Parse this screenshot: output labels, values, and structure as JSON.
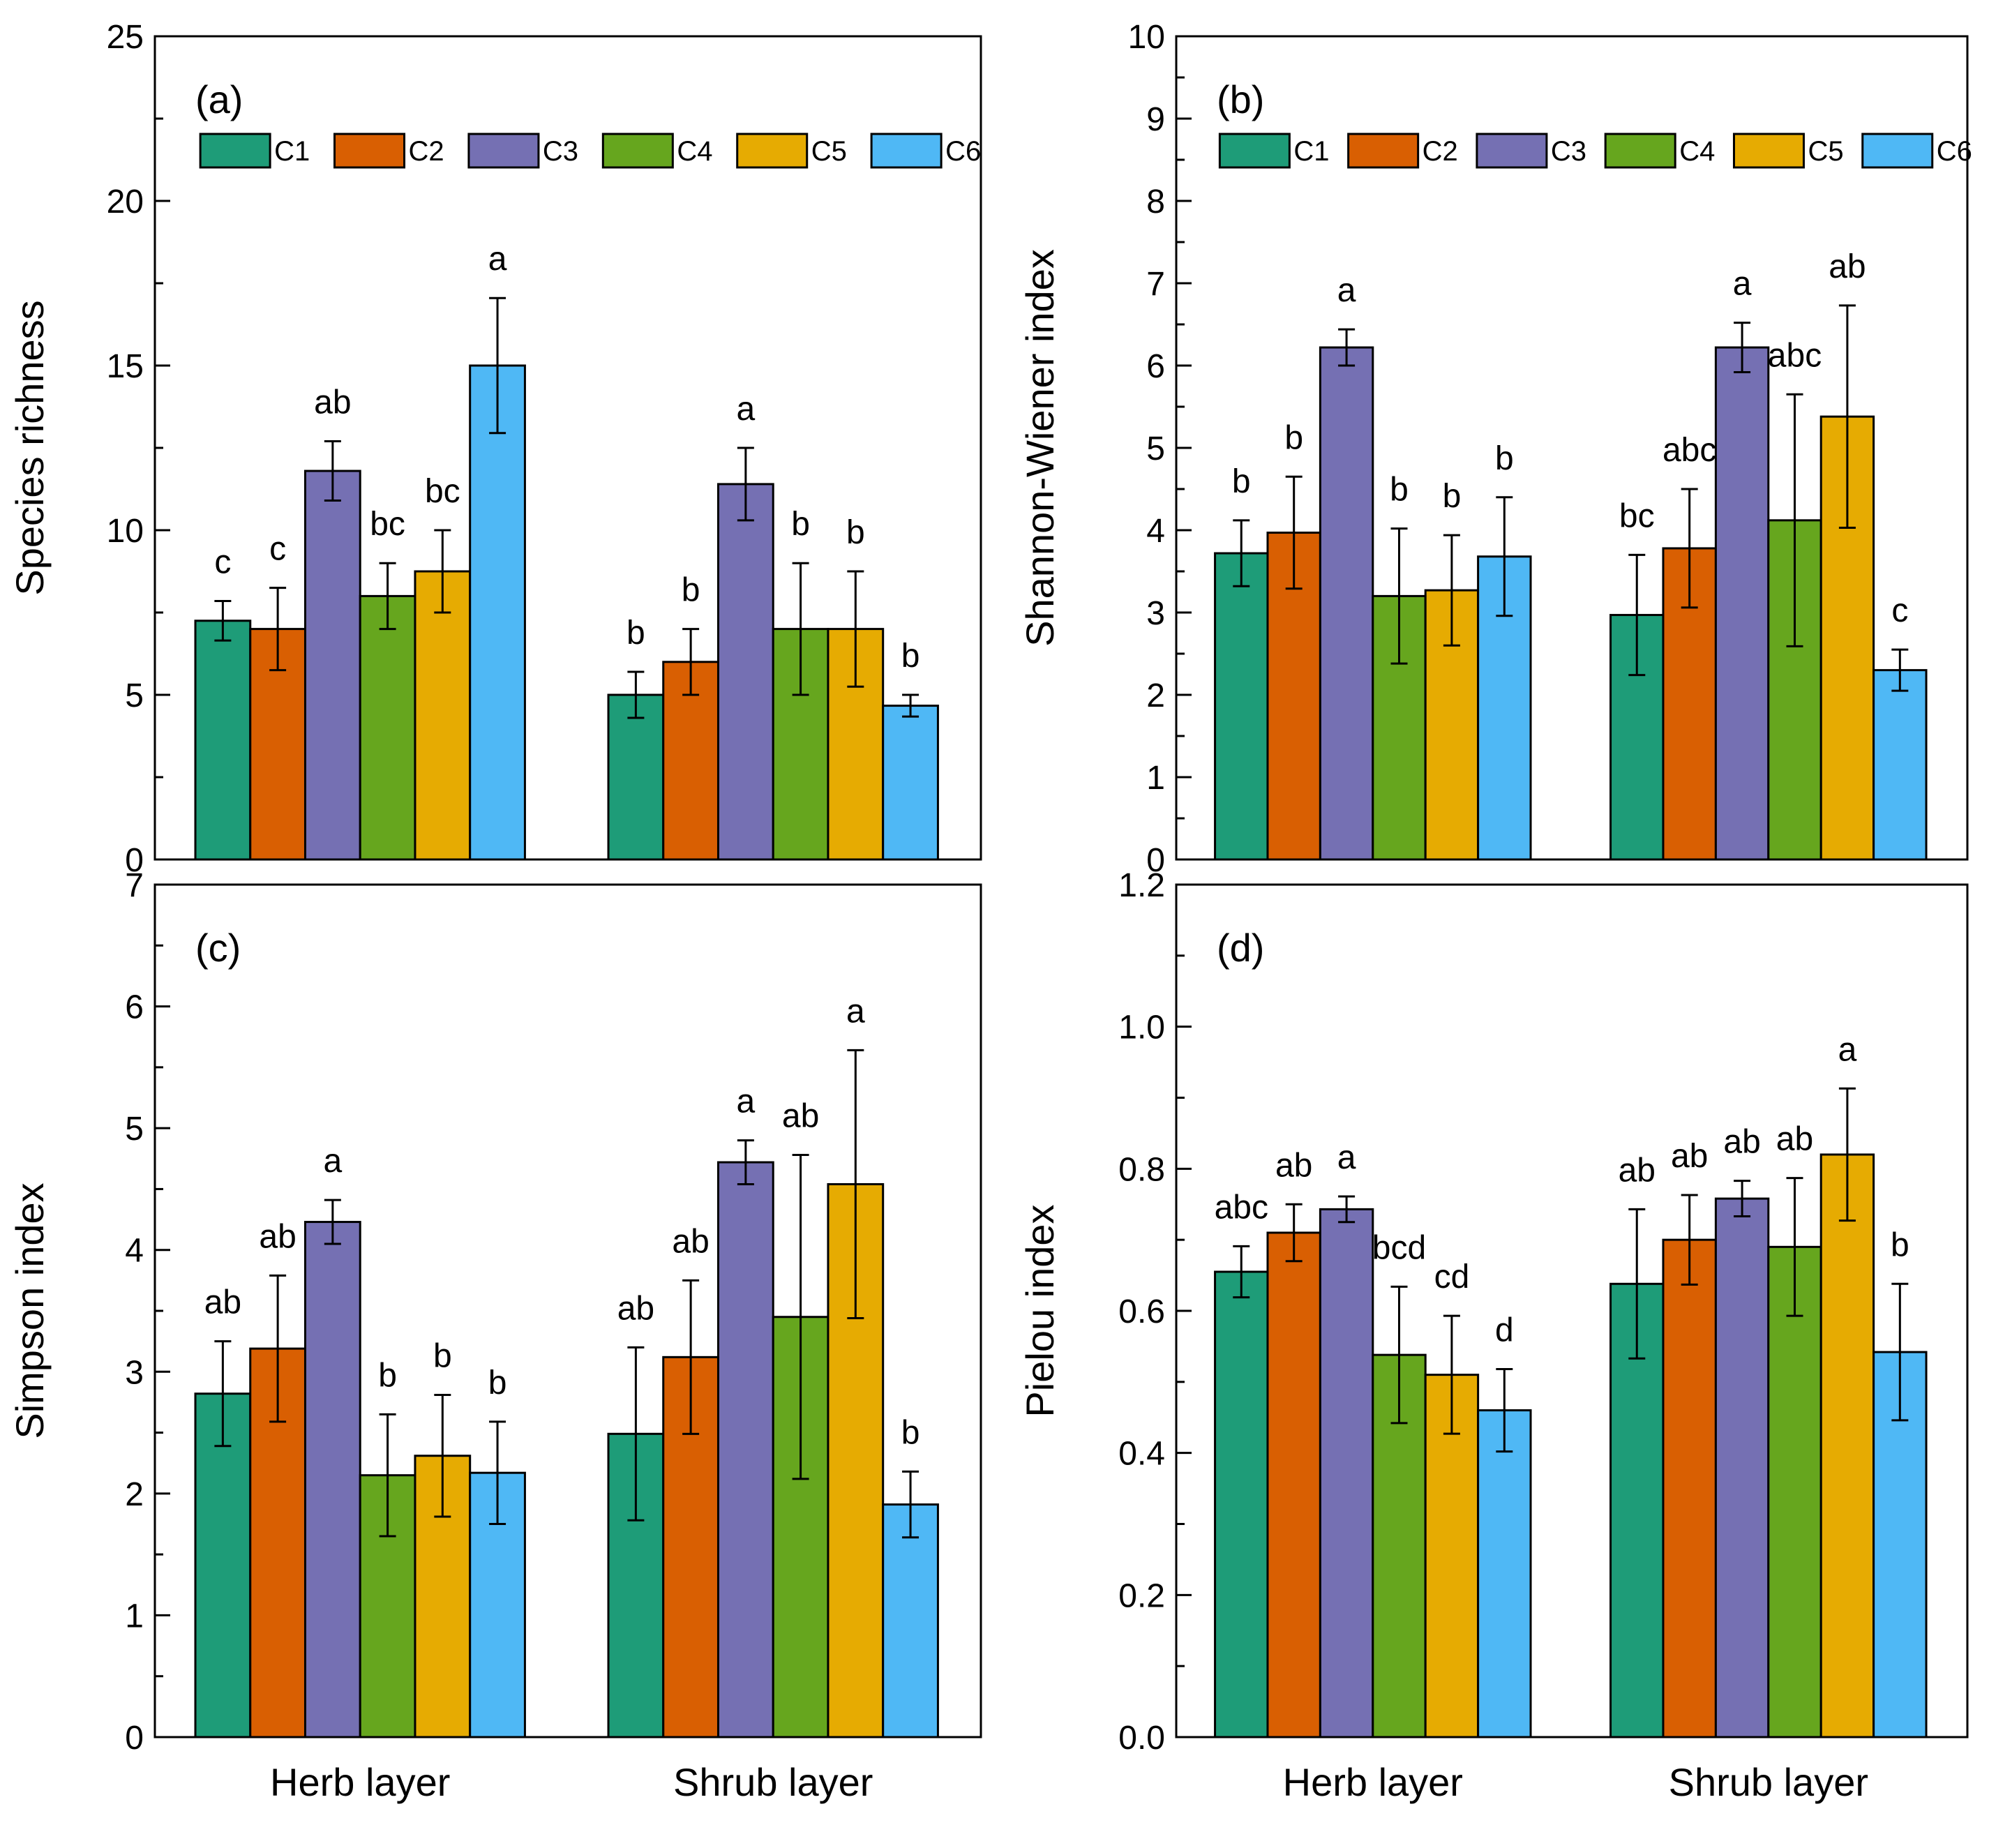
{
  "figure": {
    "group_categories": [
      "Herb layer",
      "Shrub layer"
    ],
    "legend_series": [
      "C1",
      "C2",
      "C3",
      "C4",
      "C5",
      "C6"
    ],
    "series_colors": [
      "#1e9c78",
      "#d95f02",
      "#7570b3",
      "#66a61e",
      "#e6ab02",
      "#4fb8f5"
    ]
  },
  "chart_data": [
    {
      "type": "bar",
      "panel_label": "(a)",
      "title": "",
      "xlabel": "",
      "ylabel": "Species richness",
      "ylim": [
        0,
        25
      ],
      "ytick_values": [
        0,
        5,
        10,
        15,
        20,
        25
      ],
      "ytick_labels": [
        "0",
        "5",
        "10",
        "15",
        "20",
        "25"
      ],
      "categories": [
        "Herb layer",
        "Shrub layer"
      ],
      "show_category_labels": false,
      "legend": true,
      "series": [
        {
          "name": "C1",
          "values": [
            7.25,
            5.0
          ],
          "errors": [
            0.6,
            0.7
          ],
          "labels": [
            "c",
            "b"
          ]
        },
        {
          "name": "C2",
          "values": [
            7.0,
            6.0
          ],
          "errors": [
            1.25,
            1.0
          ],
          "labels": [
            "c",
            "b"
          ]
        },
        {
          "name": "C3",
          "values": [
            11.8,
            11.4
          ],
          "errors": [
            0.9,
            1.1
          ],
          "labels": [
            "ab",
            "a"
          ]
        },
        {
          "name": "C4",
          "values": [
            8.0,
            7.0
          ],
          "errors": [
            1.0,
            2.0
          ],
          "labels": [
            "bc",
            "b"
          ]
        },
        {
          "name": "C5",
          "values": [
            8.75,
            7.0
          ],
          "errors": [
            1.25,
            1.75
          ],
          "labels": [
            "bc",
            "b"
          ]
        },
        {
          "name": "C6",
          "values": [
            15.0,
            4.67
          ],
          "errors": [
            2.05,
            0.33
          ],
          "labels": [
            "a",
            "b"
          ]
        }
      ]
    },
    {
      "type": "bar",
      "panel_label": "(b)",
      "title": "",
      "xlabel": "",
      "ylabel": "Shannon-Wiener index",
      "ylim": [
        0,
        10
      ],
      "ytick_values": [
        0,
        1,
        2,
        3,
        4,
        5,
        6,
        7,
        8,
        9,
        10
      ],
      "ytick_labels": [
        "0",
        "1",
        "2",
        "3",
        "4",
        "5",
        "6",
        "7",
        "8",
        "9",
        "10"
      ],
      "categories": [
        "Herb layer",
        "Shrub layer"
      ],
      "show_category_labels": false,
      "legend": true,
      "series": [
        {
          "name": "C1",
          "values": [
            3.72,
            2.97
          ],
          "errors": [
            0.4,
            0.73
          ],
          "labels": [
            "b",
            "bc"
          ]
        },
        {
          "name": "C2",
          "values": [
            3.97,
            3.78
          ],
          "errors": [
            0.68,
            0.72
          ],
          "labels": [
            "b",
            "abc"
          ]
        },
        {
          "name": "C3",
          "values": [
            6.22,
            6.22
          ],
          "errors": [
            0.22,
            0.3
          ],
          "labels": [
            "a",
            "a"
          ]
        },
        {
          "name": "C4",
          "values": [
            3.2,
            4.12
          ],
          "errors": [
            0.82,
            1.53
          ],
          "labels": [
            "b",
            "abc"
          ]
        },
        {
          "name": "C5",
          "values": [
            3.27,
            5.38
          ],
          "errors": [
            0.67,
            1.35
          ],
          "labels": [
            "b",
            "ab"
          ]
        },
        {
          "name": "C6",
          "values": [
            3.68,
            2.3
          ],
          "errors": [
            0.72,
            0.25
          ],
          "labels": [
            "b",
            "c"
          ]
        }
      ]
    },
    {
      "type": "bar",
      "panel_label": "(c)",
      "title": "",
      "xlabel": "",
      "ylabel": "Simpson index",
      "ylim": [
        0,
        7
      ],
      "ytick_values": [
        0,
        1,
        2,
        3,
        4,
        5,
        6,
        7
      ],
      "ytick_labels": [
        "0",
        "1",
        "2",
        "3",
        "4",
        "5",
        "6",
        "7"
      ],
      "categories": [
        "Herb layer",
        "Shrub layer"
      ],
      "show_category_labels": true,
      "legend": false,
      "series": [
        {
          "name": "C1",
          "values": [
            2.82,
            2.49
          ],
          "errors": [
            0.43,
            0.71
          ],
          "labels": [
            "ab",
            "ab"
          ]
        },
        {
          "name": "C2",
          "values": [
            3.19,
            3.12
          ],
          "errors": [
            0.6,
            0.63
          ],
          "labels": [
            "ab",
            "ab"
          ]
        },
        {
          "name": "C3",
          "values": [
            4.23,
            4.72
          ],
          "errors": [
            0.18,
            0.18
          ],
          "labels": [
            "a",
            "a"
          ]
        },
        {
          "name": "C4",
          "values": [
            2.15,
            3.45
          ],
          "errors": [
            0.5,
            1.33
          ],
          "labels": [
            "b",
            "ab"
          ]
        },
        {
          "name": "C5",
          "values": [
            2.31,
            4.54
          ],
          "errors": [
            0.5,
            1.1
          ],
          "labels": [
            "b",
            "a"
          ]
        },
        {
          "name": "C6",
          "values": [
            2.17,
            1.91
          ],
          "errors": [
            0.42,
            0.27
          ],
          "labels": [
            "b",
            "b"
          ]
        }
      ]
    },
    {
      "type": "bar",
      "panel_label": "(d)",
      "title": "",
      "xlabel": "",
      "ylabel": "Pielou index",
      "ylim": [
        0,
        1.2
      ],
      "ytick_values": [
        0,
        0.2,
        0.4,
        0.6,
        0.8,
        1.0,
        1.2
      ],
      "ytick_labels": [
        "0.0",
        "0.2",
        "0.4",
        "0.6",
        "0.8",
        "1.0",
        "1.2"
      ],
      "categories": [
        "Herb layer",
        "Shrub layer"
      ],
      "show_category_labels": true,
      "legend": false,
      "series": [
        {
          "name": "C1",
          "values": [
            0.655,
            0.638
          ],
          "errors": [
            0.036,
            0.105
          ],
          "labels": [
            "abc",
            "ab"
          ]
        },
        {
          "name": "C2",
          "values": [
            0.71,
            0.7
          ],
          "errors": [
            0.04,
            0.063
          ],
          "labels": [
            "ab",
            "ab"
          ]
        },
        {
          "name": "C3",
          "values": [
            0.743,
            0.758
          ],
          "errors": [
            0.018,
            0.025
          ],
          "labels": [
            "a",
            "ab"
          ]
        },
        {
          "name": "C4",
          "values": [
            0.538,
            0.69
          ],
          "errors": [
            0.096,
            0.097
          ],
          "labels": [
            "bcd",
            "ab"
          ]
        },
        {
          "name": "C5",
          "values": [
            0.51,
            0.82
          ],
          "errors": [
            0.083,
            0.093
          ],
          "labels": [
            "cd",
            "a"
          ]
        },
        {
          "name": "C6",
          "values": [
            0.46,
            0.542
          ],
          "errors": [
            0.058,
            0.096
          ],
          "labels": [
            "d",
            "b"
          ]
        }
      ]
    }
  ]
}
